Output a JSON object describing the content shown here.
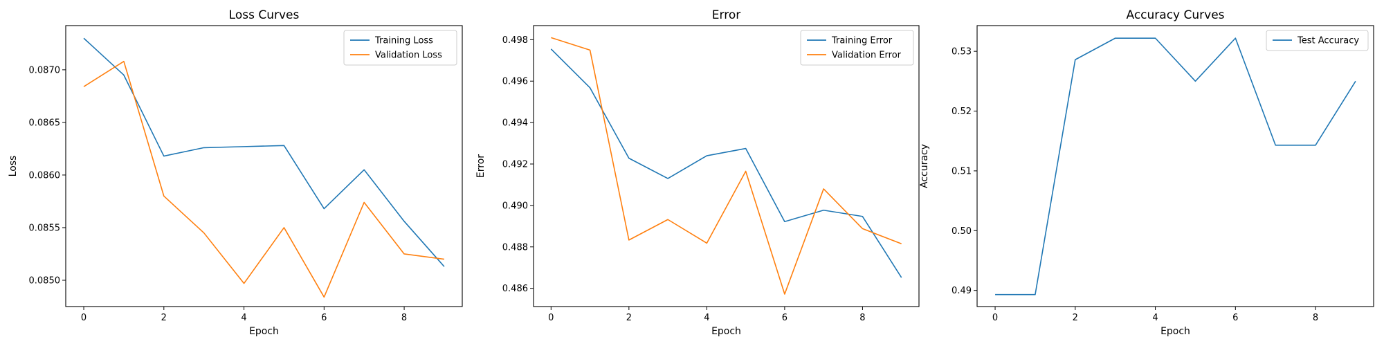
{
  "chart_data": [
    {
      "type": "line",
      "title": "Loss Curves",
      "xlabel": "Epoch",
      "ylabel": "Loss",
      "x": [
        0,
        1,
        2,
        3,
        4,
        5,
        6,
        7,
        8,
        9
      ],
      "xlim": [
        -0.45,
        9.45
      ],
      "ylim": [
        0.08475,
        0.08742
      ],
      "xticks": [
        0,
        2,
        4,
        6,
        8
      ],
      "xtick_labels": [
        "0",
        "2",
        "4",
        "6",
        "8"
      ],
      "yticks": [
        0.085,
        0.0855,
        0.086,
        0.0865,
        0.087
      ],
      "ytick_labels": [
        "0.0850",
        "0.0855",
        "0.0860",
        "0.0865",
        "0.0870"
      ],
      "legend": "top-right",
      "grid": false,
      "series": [
        {
          "name": "Training Loss",
          "color": "#1f77b4",
          "values": [
            0.0873,
            0.08695,
            0.08618,
            0.08626,
            0.08627,
            0.08628,
            0.08568,
            0.08605,
            0.08556,
            0.08513
          ]
        },
        {
          "name": "Validation Loss",
          "color": "#ff7f0e",
          "values": [
            0.08684,
            0.08708,
            0.0858,
            0.08545,
            0.08497,
            0.0855,
            0.08484,
            0.08574,
            0.08525,
            0.0852
          ]
        }
      ]
    },
    {
      "type": "line",
      "title": "Error",
      "xlabel": "Epoch",
      "ylabel": "Error",
      "x": [
        0,
        1,
        2,
        3,
        4,
        5,
        6,
        7,
        8,
        9
      ],
      "xlim": [
        -0.45,
        9.45
      ],
      "ylim": [
        0.48512,
        0.49868
      ],
      "xticks": [
        0,
        2,
        4,
        6,
        8
      ],
      "xtick_labels": [
        "0",
        "2",
        "4",
        "6",
        "8"
      ],
      "yticks": [
        0.486,
        0.488,
        0.49,
        0.492,
        0.494,
        0.496,
        0.498
      ],
      "ytick_labels": [
        "0.486",
        "0.488",
        "0.490",
        "0.492",
        "0.494",
        "0.496",
        "0.498"
      ],
      "legend": "top-right",
      "grid": false,
      "series": [
        {
          "name": "Training Error",
          "color": "#1f77b4",
          "values": [
            0.49755,
            0.49568,
            0.49228,
            0.4913,
            0.4924,
            0.49275,
            0.48922,
            0.48977,
            0.48947,
            0.48652
          ]
        },
        {
          "name": "Validation Error",
          "color": "#ff7f0e",
          "values": [
            0.4981,
            0.4975,
            0.48833,
            0.48932,
            0.48818,
            0.49165,
            0.48572,
            0.4908,
            0.48888,
            0.48815
          ]
        }
      ]
    },
    {
      "type": "line",
      "title": "Accuracy Curves",
      "xlabel": "Epoch",
      "ylabel": "Accuracy",
      "x": [
        0,
        1,
        2,
        3,
        4,
        5,
        6,
        7,
        8,
        9
      ],
      "xlim": [
        -0.45,
        9.45
      ],
      "ylim": [
        0.4873,
        0.5343
      ],
      "xticks": [
        0,
        2,
        4,
        6,
        8
      ],
      "xtick_labels": [
        "0",
        "2",
        "4",
        "6",
        "8"
      ],
      "yticks": [
        0.49,
        0.5,
        0.51,
        0.52,
        0.53
      ],
      "ytick_labels": [
        "0.49",
        "0.50",
        "0.51",
        "0.52",
        "0.53"
      ],
      "legend": "top-right",
      "grid": false,
      "series": [
        {
          "name": "Test Accuracy",
          "color": "#1f77b4",
          "values": [
            0.4893,
            0.4893,
            0.5286,
            0.5322,
            0.5322,
            0.525,
            0.5322,
            0.5143,
            0.5143,
            0.525
          ]
        }
      ]
    }
  ]
}
